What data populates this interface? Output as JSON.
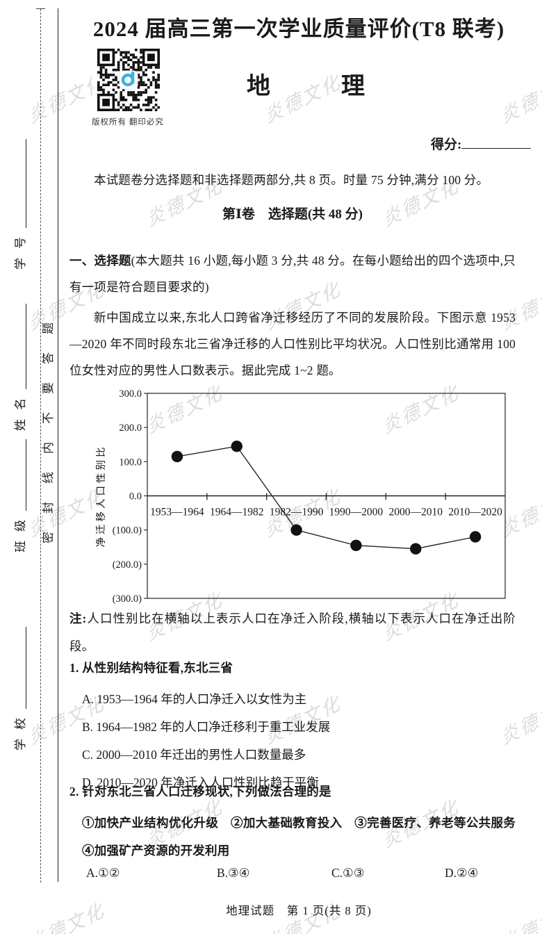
{
  "page": {
    "exam_title": "2024 届高三第一次学业质量评价(T8 联考)",
    "subject": "地　　　理",
    "qr_caption": "版权所有  翻印必究",
    "score_label": "得分:",
    "intro": "本试题卷分选择题和非选择题两部分,共 8 页。时量 75 分钟,满分 100 分。",
    "section1_title": "第Ⅰ卷　选择题(共 48 分)",
    "choice_section_lead": "一、选择题",
    "choice_section_rest": "(本大题共 16 小题,每小题 3 分,共 48 分。在每小题给出的四个选项中,只有一项是符合题目要求的)",
    "passage": "新中国成立以来,东北人口跨省净迁移经历了不同的发展阶段。下图示意 1953—2020 年不同时段东北三省净迁移的人口性别比平均状况。人口性别比通常用 100 位女性对应的男性人口数表示。据此完成 1~2 题。",
    "note_lead": "注:",
    "note_rest": "人口性别比在横轴以上表示人口在净迁入阶段,横轴以下表示人口在净迁出阶段。",
    "footer": "地理试题　第 1 页(共 8 页)"
  },
  "sidebar": {
    "labels": [
      "学号",
      "姓名",
      "班级",
      "学校"
    ],
    "seal_text": "密封线内不要答题"
  },
  "questions": [
    {
      "number": "1.",
      "stem": "从性别结构特征看,东北三省",
      "options": [
        "A. 1953—1964 年的人口净迁入以女性为主",
        "B. 1964—1982 年的人口净迁移利于重工业发展",
        "C. 2000—2010 年迁出的男性人口数量最多",
        "D. 2010—2020 年净迁入人口性别比趋于平衡"
      ]
    },
    {
      "number": "2.",
      "stem": "针对东北三省人口迁移现状,下列做法合理的是",
      "sub_options": "①加快产业结构优化升级　②加大基础教育投入　③完善医疗、养老等公共服务　④加强矿产资源的开发利用",
      "answers": [
        "A.①②",
        "B.③④",
        "C.①③",
        "D.②④"
      ]
    }
  ],
  "chart_data": {
    "type": "line",
    "categories": [
      "1953—1964",
      "1964—1982",
      "1982—1990",
      "1990—2000",
      "2000—2010",
      "2010—2020"
    ],
    "values": [
      115,
      145,
      -100,
      -145,
      -155,
      -120
    ],
    "title": "",
    "xlabel": "",
    "ylabel": "净迁移人口性别比",
    "ylim": [
      -300,
      300
    ],
    "yticks": [
      300,
      200,
      100,
      0,
      -100,
      -200,
      -300
    ],
    "ytick_labels": [
      "300.0",
      "200.0",
      "100.0",
      "0.0",
      "(100.0)",
      "(200.0)",
      "(300.0)"
    ],
    "grid": false,
    "legend": "none",
    "marker": "filled-circle",
    "line_color": "#222222",
    "marker_color": "#111111"
  },
  "watermark": {
    "text": "炎德文化",
    "color": "#dcdcdc"
  },
  "qr": {
    "logo_color": "#3cb4dc"
  }
}
